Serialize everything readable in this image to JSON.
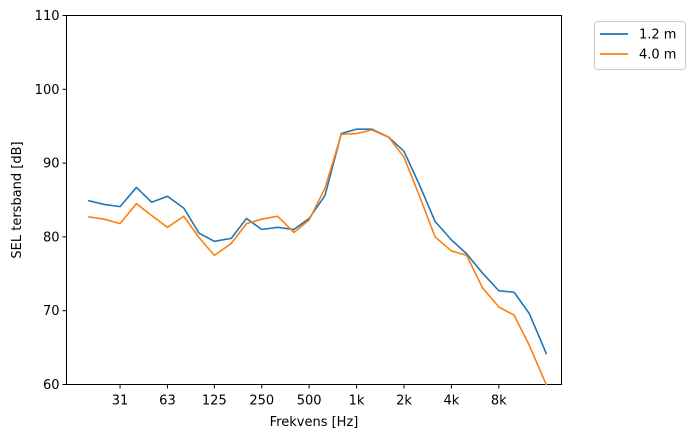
{
  "chart_data": {
    "type": "line",
    "xlabel": "Frekvens [Hz]",
    "ylabel": "SEL tersband [dB]",
    "ylim": [
      60,
      110
    ],
    "yticks": [
      60,
      70,
      80,
      90,
      100,
      110
    ],
    "x_scale": "log",
    "x_tick_values": [
      31.5,
      63,
      125,
      250,
      500,
      1000,
      2000,
      4000,
      8000
    ],
    "x_tick_labels": [
      "31",
      "63",
      "125",
      "250",
      "500",
      "1k",
      "2k",
      "4k",
      "8k"
    ],
    "xlim": [
      14.4,
      20000
    ],
    "x": [
      20,
      25,
      31.5,
      40,
      50,
      63,
      80,
      100,
      125,
      160,
      200,
      250,
      315,
      400,
      500,
      630,
      800,
      1000,
      1250,
      1600,
      2000,
      2500,
      3150,
      4000,
      5000,
      6300,
      8000,
      10000,
      12500,
      16000
    ],
    "legend_position": "outside upper right",
    "series": [
      {
        "name": "1.2 m",
        "color": "#1f77b4",
        "values": [
          84.9,
          84.4,
          84.1,
          86.7,
          84.7,
          85.5,
          83.9,
          80.5,
          79.4,
          79.8,
          82.5,
          81.0,
          81.3,
          81.0,
          82.5,
          85.6,
          94.0,
          94.6,
          94.6,
          93.5,
          91.6,
          87.1,
          82.1,
          79.6,
          77.7,
          75.1,
          72.7,
          72.5,
          69.6,
          64.2
        ]
      },
      {
        "name": "4.0 m",
        "color": "#ff7f0e",
        "values": [
          82.7,
          82.4,
          81.8,
          84.5,
          82.9,
          81.3,
          82.8,
          79.9,
          77.5,
          79.1,
          81.8,
          82.4,
          82.8,
          80.6,
          82.3,
          86.6,
          93.9,
          94.0,
          94.5,
          93.5,
          90.8,
          85.6,
          80.0,
          78.1,
          77.5,
          73.1,
          70.5,
          69.4,
          65.3,
          60.0
        ]
      }
    ]
  }
}
